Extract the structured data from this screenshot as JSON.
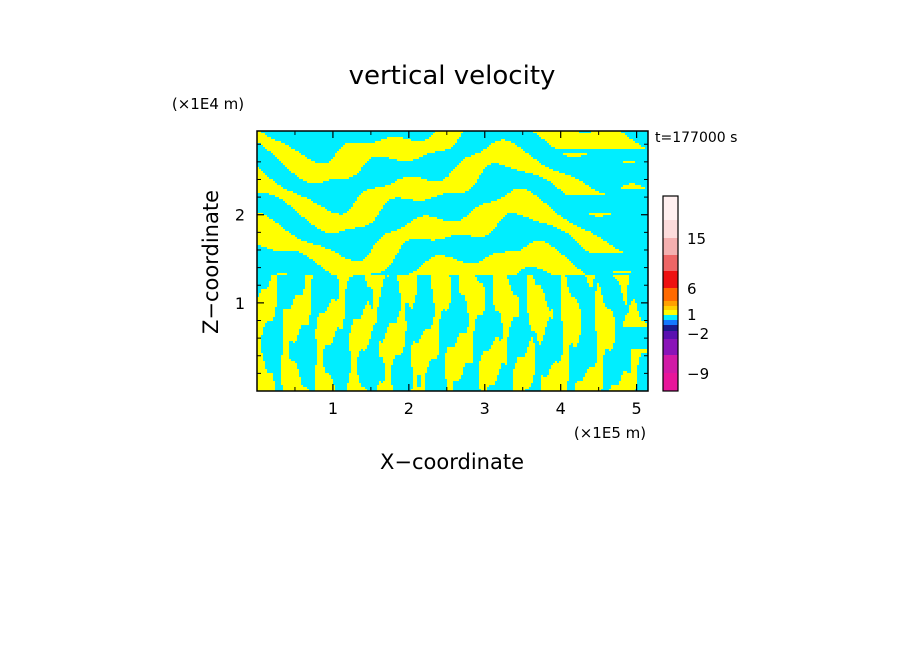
{
  "chart_data": {
    "type": "heatmap",
    "title": "vertical velocity",
    "xlabel": "X−coordinate",
    "ylabel": "Z−coordinate",
    "x_unit_label": "(×1E5 m)",
    "y_unit_label": "(×1E4 m)",
    "time_label": "t=177000 s",
    "xlim": [
      0,
      5.15
    ],
    "ylim": [
      0,
      2.95
    ],
    "x_ticks": [
      1,
      2,
      3,
      4,
      5
    ],
    "x_tick_labels": [
      "1",
      "2",
      "3",
      "4",
      "5"
    ],
    "y_ticks": [
      1,
      2
    ],
    "y_tick_labels": [
      "1",
      "2"
    ],
    "pattern_colors": {
      "updraft": "#ffff00",
      "downdraft": "#00eeff"
    },
    "colorbar": {
      "levels": [
        {
          "value": -12,
          "color": "#e8159a"
        },
        {
          "value": -9,
          "color": "#d11aa6"
        },
        {
          "value": -6,
          "color": "#8a14b8"
        },
        {
          "value": -4,
          "color": "#5a10b0"
        },
        {
          "value": -3,
          "color": "#1a1a8c"
        },
        {
          "value": -2,
          "color": "#1478ff"
        },
        {
          "value": -1,
          "color": "#00eeff"
        },
        {
          "value": 1,
          "color": "#ffff00"
        },
        {
          "value": 2,
          "color": "#ffd000"
        },
        {
          "value": 3,
          "color": "#ffa000"
        },
        {
          "value": 6,
          "color": "#ff6a00"
        },
        {
          "value": 9,
          "color": "#ee1111"
        },
        {
          "value": 12,
          "color": "#ee6666"
        },
        {
          "value": 15,
          "color": "#f4b0b0"
        },
        {
          "value": 18,
          "color": "#fcdcdc"
        },
        {
          "value": 21,
          "color": "#fff0f0"
        }
      ],
      "labels": [
        "15",
        "6",
        "1",
        "−2",
        "−9"
      ]
    }
  }
}
